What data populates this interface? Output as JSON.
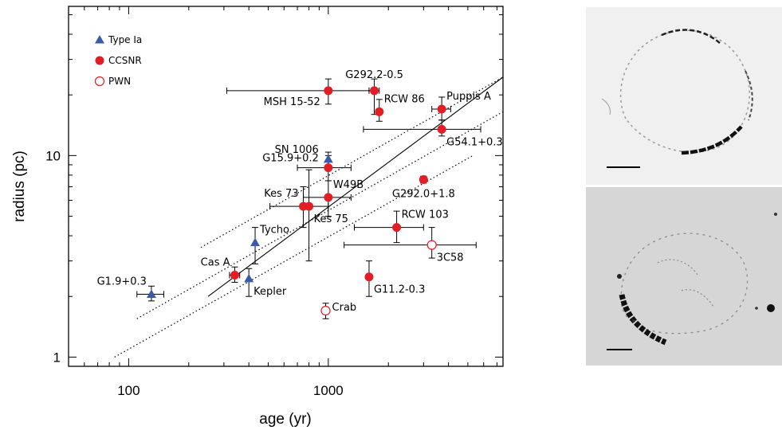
{
  "chart_data": {
    "type": "scatter",
    "xlabel": "age (yr)",
    "ylabel": "radius (pc)",
    "xscale": "log",
    "yscale": "log",
    "xlim": [
      50,
      7500
    ],
    "ylim": [
      0.9,
      55
    ],
    "xticks": [
      {
        "v": 100,
        "label": "100"
      },
      {
        "v": 1000,
        "label": "1000"
      }
    ],
    "yticks": [
      {
        "v": 1,
        "label": "1"
      },
      {
        "v": 10,
        "label": "10"
      }
    ],
    "legend": {
      "position": "top-left",
      "entries": [
        {
          "label": "Type Ia",
          "marker": "triangle",
          "color": "#3a5ba8"
        },
        {
          "label": "CCSNR",
          "marker": "filled-circle",
          "color": "#e31d24"
        },
        {
          "label": "PWN",
          "marker": "open-circle",
          "color": "#e31d24"
        }
      ]
    },
    "series": [
      {
        "name": "Type Ia",
        "marker": "triangle",
        "color": "#3a5ba8",
        "points": [
          {
            "name": "G1.9+0.3",
            "x": 130,
            "y": 2.05,
            "xerr": [
              110,
              150
            ],
            "yerr": [
              1.9,
              2.25
            ],
            "label_side": "above-left"
          },
          {
            "name": "Kepler",
            "x": 400,
            "y": 2.45,
            "xerr": null,
            "yerr": [
              2.0,
              2.75
            ],
            "label_side": "below-right"
          },
          {
            "name": "Tycho",
            "x": 430,
            "y": 3.7,
            "xerr": null,
            "yerr": [
              2.9,
              4.4
            ],
            "label_side": "above-right"
          },
          {
            "name": "SN 1006",
            "x": 1000,
            "y": 9.6,
            "xerr": null,
            "yerr": [
              8.9,
              10.4
            ],
            "label_side": "left"
          }
        ]
      },
      {
        "name": "CCSNR",
        "marker": "filled-circle",
        "color": "#e31d24",
        "points": [
          {
            "name": "Cas A",
            "x": 340,
            "y": 2.55,
            "xerr": [
              320,
              360
            ],
            "yerr": [
              2.35,
              2.8
            ],
            "label_side": "above-left"
          },
          {
            "name": "Kes 73",
            "x": 750,
            "y": 5.6,
            "xerr": [
              510,
              1000
            ],
            "yerr": [
              4.4,
              7.0
            ],
            "label_side": "above-left"
          },
          {
            "name": "Kes 75",
            "x": 800,
            "y": 5.6,
            "xerr": null,
            "yerr": [
              3.0,
              8.5
            ],
            "label_side": "below-right"
          },
          {
            "name": "W49B",
            "x": 1000,
            "y": 6.2,
            "xerr": [
              750,
              1300
            ],
            "yerr": [
              5.0,
              7.5
            ],
            "label_side": "above-right"
          },
          {
            "name": "G15.9+0.2",
            "x": 1000,
            "y": 8.7,
            "xerr": [
              700,
              1300
            ],
            "yerr": [
              7.5,
              10.0
            ],
            "label_side": "left"
          },
          {
            "name": "MSH 15-52",
            "x": 1000,
            "y": 21.0,
            "xerr": [
              310,
              1700
            ],
            "yerr": [
              18.0,
              24.0
            ],
            "label_side": "below-left"
          },
          {
            "name": "G292.2-0.5",
            "x": 1700,
            "y": 21.0,
            "xerr": [
              1600,
              1800
            ],
            "yerr": [
              16.0,
              24.0
            ],
            "label_side": "above"
          },
          {
            "name": "RCW 86",
            "x": 1800,
            "y": 16.5,
            "xerr": null,
            "yerr": [
              14.8,
              19.0
            ],
            "label_side": "above-right"
          },
          {
            "name": "Puppis A",
            "x": 3700,
            "y": 17.0,
            "xerr": [
              3300,
              4100
            ],
            "yerr": [
              15.0,
              19.5
            ],
            "label_side": "above-right"
          },
          {
            "name": "G54.1+0.3",
            "x": 3700,
            "y": 13.5,
            "xerr": [
              1500,
              5800
            ],
            "yerr": [
              12.5,
              15.0
            ],
            "label_side": "below-right"
          },
          {
            "name": "G292.0+1.8",
            "x": 3000,
            "y": 7.6,
            "xerr": [
              2900,
              3100
            ],
            "yerr": [
              7.3,
              7.9
            ],
            "label_side": "below"
          },
          {
            "name": "RCW 103",
            "x": 2200,
            "y": 4.4,
            "xerr": [
              1350,
              3000
            ],
            "yerr": [
              3.7,
              5.3
            ],
            "label_side": "above-right"
          },
          {
            "name": "G11.2-0.3",
            "x": 1600,
            "y": 2.5,
            "xerr": null,
            "yerr": [
              2.0,
              3.0
            ],
            "label_side": "below-right"
          }
        ]
      },
      {
        "name": "PWN",
        "marker": "open-circle",
        "color": "#e31d24",
        "points": [
          {
            "name": "3C58",
            "x": 3300,
            "y": 3.6,
            "xerr": [
              1200,
              5500
            ],
            "yerr": [
              3.1,
              4.4
            ],
            "label_side": "below-right"
          },
          {
            "name": "Crab",
            "x": 970,
            "y": 1.7,
            "xerr": null,
            "yerr": [
              1.55,
              1.85
            ],
            "label_side": "right"
          }
        ]
      }
    ],
    "lines": [
      {
        "style": "solid",
        "points": [
          [
            250,
            2.0
          ],
          [
            7500,
            24.5
          ]
        ]
      },
      {
        "style": "dotted",
        "points": [
          [
            110,
            1.55
          ],
          [
            7500,
            16.5
          ]
        ]
      },
      {
        "style": "dotted",
        "points": [
          [
            230,
            3.5
          ],
          [
            7500,
            24.5
          ]
        ]
      },
      {
        "style": "dotted",
        "points": [
          [
            85,
            1.0
          ],
          [
            5300,
            10.0
          ]
        ]
      }
    ]
  },
  "images": {
    "top_panel": {
      "content": "grayscale image of a ring-shaped supernova remnant shell",
      "has_scale_bar": true
    },
    "bottom_panel": {
      "content": "grayscale image of a fainter supernova remnant with bright lower-left rim and point sources",
      "has_scale_bar": true
    }
  }
}
